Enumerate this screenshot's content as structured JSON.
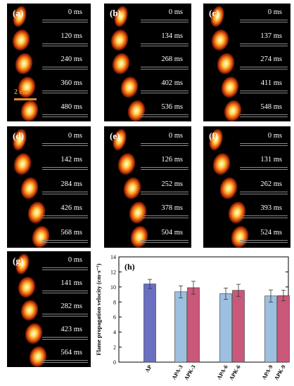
{
  "panels": [
    {
      "label": "(a)",
      "times": [
        "0 ms",
        "120 ms",
        "240 ms",
        "360 ms",
        "480 ms"
      ],
      "scale": "2 cm"
    },
    {
      "label": "(b)",
      "times": [
        "0 ms",
        "134 ms",
        "268 ms",
        "402 ms",
        "536 ms"
      ]
    },
    {
      "label": "(c)",
      "times": [
        "0 ms",
        "137 ms",
        "274 ms",
        "411 ms",
        "548 ms"
      ]
    },
    {
      "label": "(d)",
      "times": [
        "0 ms",
        "142 ms",
        "284 ms",
        "426 ms",
        "568 ms"
      ]
    },
    {
      "label": "(e)",
      "times": [
        "0 ms",
        "126 ms",
        "252 ms",
        "378 ms",
        "504 ms"
      ]
    },
    {
      "label": "(f)",
      "times": [
        "0 ms",
        "131 ms",
        "262 ms",
        "393 ms",
        "524 ms"
      ]
    },
    {
      "label": "(g)",
      "times": [
        "0 ms",
        "141 ms",
        "282 ms",
        "423 ms",
        "564 ms"
      ]
    }
  ],
  "chart_data": {
    "type": "bar",
    "panel_label": "(h)",
    "ylabel": "Flame propagation velocity (cm·s⁻¹)",
    "ylim": [
      0,
      14
    ],
    "yticks": [
      0,
      2,
      4,
      6,
      8,
      10,
      12,
      14
    ],
    "categories": [
      "AP",
      "APA-3",
      "APK-3",
      "APA-6",
      "APK-6",
      "APA-9",
      "APK-9"
    ],
    "values": [
      10.4,
      9.35,
      9.9,
      9.1,
      9.55,
      8.8,
      8.85
    ],
    "errors": [
      0.6,
      0.8,
      0.85,
      0.75,
      0.8,
      0.8,
      0.7
    ],
    "colors": [
      "#6a6fc0",
      "#9dbfe0",
      "#c9587a",
      "#9dbfe0",
      "#c9587a",
      "#9dbfe0",
      "#c9587a"
    ]
  }
}
